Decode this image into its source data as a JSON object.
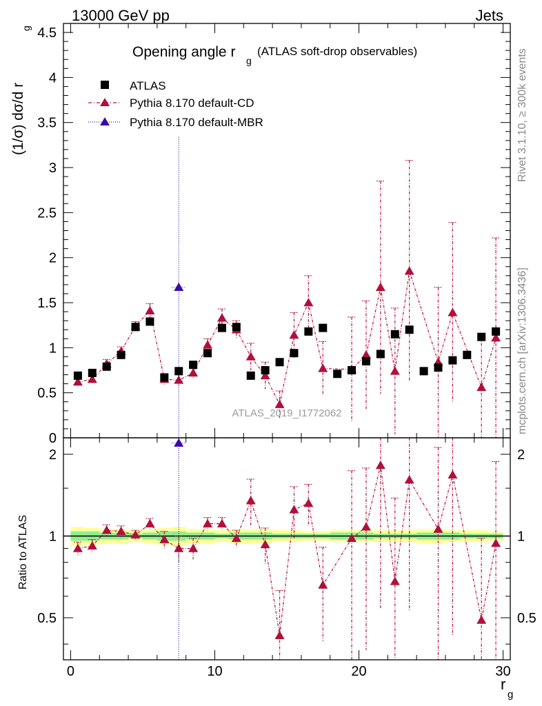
{
  "header": {
    "left": "13000 GeV pp",
    "right": "Jets"
  },
  "side": {
    "rivet": "Rivet 3.1.10, ≥ 300k events",
    "mcplots": "mcplots.cern.ch [arXiv:1306.3436]"
  },
  "chart_data": [
    {
      "type": "scatter",
      "title": "Opening angle r",
      "title_sub": "g",
      "title_suffix": "(ATLAS soft-drop observables)",
      "ylabel": "(1/σ) dσ/d r",
      "ylabel_sub": "g",
      "xlim": [
        -0.5,
        30.5
      ],
      "ylim": [
        0,
        4.6
      ],
      "yticks": [
        0,
        0.5,
        1,
        1.5,
        2,
        2.5,
        3,
        3.5,
        4,
        4.5
      ],
      "ytick_labels": [
        "0",
        "0.5",
        "1",
        "1.5",
        "2",
        "2.5",
        "3",
        "3.5",
        "4",
        "4.5"
      ],
      "analysis_label": "ATLAS_2019_I1772062",
      "legend": [
        "ATLAS",
        "Pythia 8.170 default-CD",
        "Pythia 8.170 default-MBR"
      ],
      "series": [
        {
          "name": "ATLAS",
          "color": "#000000",
          "marker": "square",
          "x": [
            0.5,
            1.5,
            2.5,
            3.5,
            4.5,
            5.5,
            6.5,
            7.5,
            8.5,
            9.5,
            10.5,
            11.5,
            12.5,
            13.5,
            14.5,
            15.5,
            16.5,
            17.5,
            18.5,
            19.5,
            20.5,
            21.5,
            22.5,
            23.5,
            24.5,
            25.5,
            26.5,
            27.5,
            28.5,
            29.5
          ],
          "y": [
            0.69,
            0.72,
            0.79,
            0.92,
            1.23,
            1.29,
            0.67,
            0.74,
            0.81,
            0.94,
            1.22,
            1.23,
            0.69,
            0.75,
            0.84,
            0.94,
            1.18,
            1.22,
            0.71,
            0.75,
            0.85,
            0.93,
            1.15,
            1.2,
            0.74,
            0.78,
            0.86,
            0.92,
            1.12,
            1.18
          ]
        },
        {
          "name": "Pythia 8.170 default-CD",
          "color": "#b0103a",
          "marker": "triangle",
          "x": [
            0.5,
            1.5,
            2.5,
            3.5,
            4.5,
            5.5,
            6.5,
            7.5,
            8.5,
            9.5,
            10.5,
            11.5,
            12.5,
            13.5,
            14.5,
            15.5,
            16.5,
            17.5,
            19.5,
            20.5,
            21.5,
            22.5,
            23.5,
            25.5,
            26.5,
            28.5,
            29.5
          ],
          "y": [
            0.62,
            0.65,
            0.82,
            0.96,
            1.24,
            1.41,
            0.65,
            0.64,
            0.72,
            1.03,
            1.33,
            1.2,
            0.9,
            0.69,
            0.37,
            1.14,
            1.5,
            0.77,
            0.76,
            0.92,
            1.67,
            0.74,
            1.85,
            0.84,
            1.39,
            0.56,
            1.11
          ],
          "err": [
            0.04,
            0.04,
            0.05,
            0.05,
            0.05,
            0.08,
            0.06,
            0.07,
            0.07,
            0.07,
            0.1,
            0.1,
            0.15,
            0.15,
            0.15,
            0.25,
            0.3,
            0.3,
            0.58,
            0.6,
            1.18,
            0.7,
            1.23,
            0.83,
            1.0,
            0.56,
            1.11
          ]
        },
        {
          "name": "Pythia 8.170 default-MBR",
          "color": "#3a0aa8",
          "marker": "triangle",
          "x": [
            7.5
          ],
          "y": [
            1.67
          ],
          "err": [
            1.67
          ]
        }
      ]
    },
    {
      "type": "scatter",
      "ylabel": "Ratio to ATLAS",
      "xlabel": "r",
      "xlabel_sub": "g",
      "xlim": [
        -0.5,
        30.5
      ],
      "ylim": [
        0.35,
        2.3
      ],
      "yticks": [
        0.5,
        1,
        2
      ],
      "ytick_labels": [
        "0.5",
        "1",
        "2"
      ],
      "xticks": [
        0,
        10,
        20,
        30
      ],
      "xtick_labels": [
        "0",
        "10",
        "20",
        "30"
      ],
      "band": {
        "x": [
          0.5,
          1.5,
          2.5,
          3.5,
          4.5,
          5.5,
          6.5,
          7.5,
          8.5,
          9.5,
          10.5,
          11.5,
          12.5,
          13.5,
          14.5,
          15.5,
          16.5,
          17.5,
          18.5,
          19.5,
          20.5,
          21.5,
          22.5,
          23.5,
          24.5,
          25.5,
          26.5,
          27.5,
          28.5,
          29.5
        ],
        "stat": [
          0.04,
          0.04,
          0.03,
          0.03,
          0.02,
          0.03,
          0.04,
          0.04,
          0.03,
          0.03,
          0.02,
          0.03,
          0.03,
          0.03,
          0.02,
          0.02,
          0.02,
          0.02,
          0.03,
          0.03,
          0.03,
          0.02,
          0.02,
          0.02,
          0.03,
          0.03,
          0.03,
          0.02,
          0.02,
          0.02
        ],
        "total": [
          0.08,
          0.07,
          0.06,
          0.06,
          0.05,
          0.06,
          0.07,
          0.08,
          0.06,
          0.06,
          0.05,
          0.06,
          0.06,
          0.06,
          0.05,
          0.05,
          0.04,
          0.04,
          0.05,
          0.05,
          0.05,
          0.05,
          0.05,
          0.05,
          0.06,
          0.06,
          0.05,
          0.05,
          0.05,
          0.04
        ],
        "stat_color": "#90ee90",
        "total_color": "#ffff99"
      },
      "series": [
        {
          "name": "Pythia 8.170 default-CD",
          "color": "#b0103a",
          "x": [
            0.5,
            1.5,
            2.5,
            3.5,
            4.5,
            5.5,
            6.5,
            7.5,
            8.5,
            9.5,
            10.5,
            11.5,
            12.5,
            13.5,
            14.5,
            15.5,
            16.5,
            17.5,
            19.5,
            20.5,
            21.5,
            22.5,
            23.5,
            25.5,
            26.5,
            28.5,
            29.5
          ],
          "y": [
            0.9,
            0.92,
            1.05,
            1.04,
            1.01,
            1.11,
            0.97,
            0.9,
            0.9,
            1.11,
            1.11,
            0.98,
            1.35,
            0.93,
            0.43,
            1.25,
            1.32,
            0.66,
            0.98,
            1.08,
            1.82,
            0.68,
            1.61,
            1.06,
            1.68,
            0.49,
            0.94
          ],
          "err": [
            0.05,
            0.05,
            0.05,
            0.05,
            0.04,
            0.05,
            0.07,
            0.1,
            0.08,
            0.06,
            0.06,
            0.07,
            0.27,
            0.14,
            0.2,
            0.27,
            0.23,
            0.25,
            0.76,
            0.7,
            1.28,
            0.7,
            1.08,
            1.06,
            1.25,
            0.49,
            0.94
          ]
        },
        {
          "name": "Pythia 8.170 default-MBR",
          "color": "#3a0aa8",
          "x": [
            7.5
          ],
          "y": [
            2.2
          ],
          "err": [
            2.2
          ]
        }
      ]
    }
  ]
}
